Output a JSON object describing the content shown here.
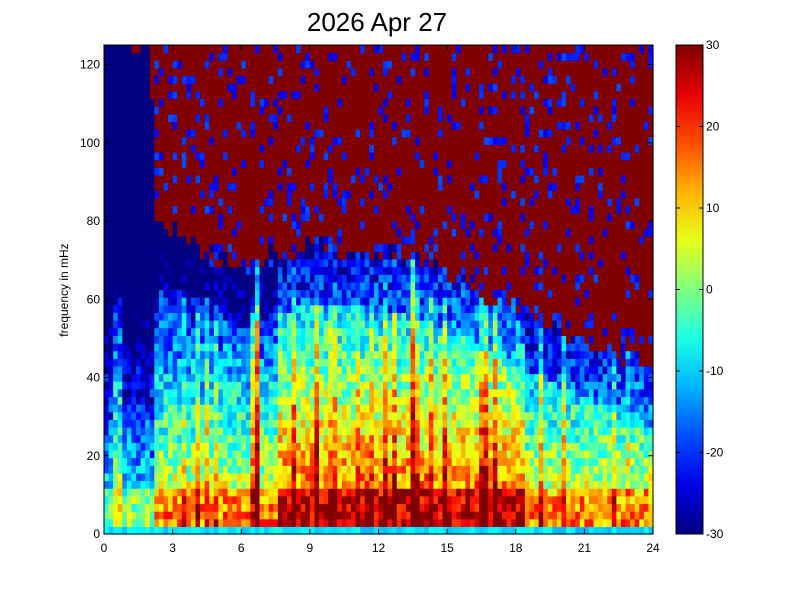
{
  "chart_data": {
    "type": "heatmap",
    "title": "2026 Apr 27",
    "xlabel": "",
    "ylabel": "frequency in mHz",
    "xlim": [
      0,
      24
    ],
    "ylim": [
      0,
      125
    ],
    "x_ticks": [
      "0",
      "3",
      "6",
      "9",
      "12",
      "15",
      "18",
      "21",
      "24"
    ],
    "y_ticks": [
      "0",
      "20",
      "40",
      "60",
      "80",
      "100",
      "120"
    ],
    "colorbar": {
      "clim": [
        -30,
        30
      ],
      "ticks": [
        "-30",
        "-20",
        "-10",
        "0",
        "10",
        "20",
        "30"
      ],
      "colormap": "jet"
    },
    "grid": false,
    "grid_resolution": {
      "time_bins": 120,
      "freq_bins": 64
    },
    "features": {
      "noise_floor_boundary_mHz": [
        {
          "hour": 0,
          "freq": 125
        },
        {
          "hour": 2,
          "freq": 125
        },
        {
          "hour": 2.3,
          "freq": 80
        },
        {
          "hour": 6,
          "freq": 68
        },
        {
          "hour": 9,
          "freq": 74
        },
        {
          "hour": 12,
          "freq": 72
        },
        {
          "hour": 14,
          "freq": 70
        },
        {
          "hour": 18,
          "freq": 58
        },
        {
          "hour": 21,
          "freq": 50
        },
        {
          "hour": 24,
          "freq": 42
        }
      ],
      "strong_band_mHz": [
        2,
        12
      ],
      "vertical_spike_hours": [
        6.7,
        13.5
      ]
    }
  }
}
